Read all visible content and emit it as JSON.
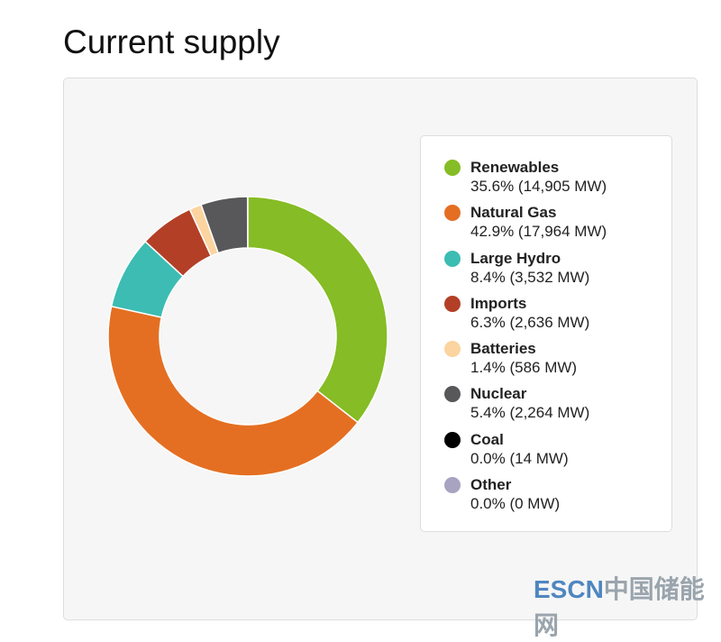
{
  "header": {
    "title": "Current supply"
  },
  "watermark": {
    "en": "ESCN",
    "cn": "中国储能网"
  },
  "chart_data": {
    "type": "pie",
    "donut": true,
    "legend_position": "right",
    "series": [
      {
        "name": "Renewables",
        "percent": 35.6,
        "mw": 14905,
        "label": "35.6% (14,905 MW)",
        "color": "#86bc25"
      },
      {
        "name": "Natural Gas",
        "percent": 42.9,
        "mw": 17964,
        "label": "42.9% (17,964 MW)",
        "color": "#e46f22"
      },
      {
        "name": "Large Hydro",
        "percent": 8.4,
        "mw": 3532,
        "label": "8.4% (3,532 MW)",
        "color": "#3cbcb2"
      },
      {
        "name": "Imports",
        "percent": 6.3,
        "mw": 2636,
        "label": "6.3% (2,636 MW)",
        "color": "#b33f26"
      },
      {
        "name": "Batteries",
        "percent": 1.4,
        "mw": 586,
        "label": "1.4% (586 MW)",
        "color": "#fbd49f"
      },
      {
        "name": "Nuclear",
        "percent": 5.4,
        "mw": 2264,
        "label": "5.4% (2,264 MW)",
        "color": "#58585a"
      },
      {
        "name": "Coal",
        "percent": 0.0,
        "mw": 14,
        "label": "0.0% (14 MW)",
        "color": "#000000"
      },
      {
        "name": "Other",
        "percent": 0.0,
        "mw": 0,
        "label": "0.0% (0 MW)",
        "color": "#a7a3c0"
      }
    ]
  }
}
